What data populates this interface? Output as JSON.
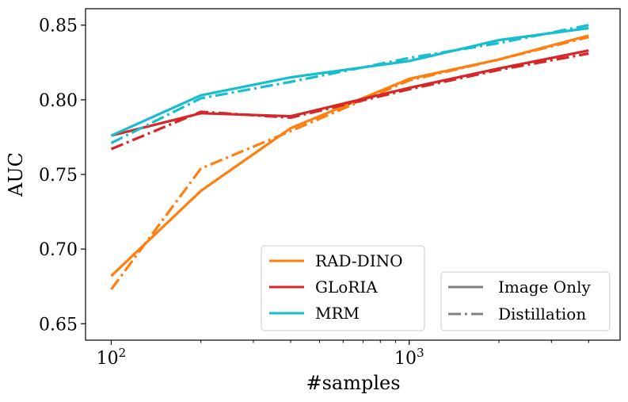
{
  "chart_data": {
    "type": "line",
    "xscale": "log",
    "xlabel": "#samples",
    "ylabel": "AUC",
    "xlim": [
      82,
      5100
    ],
    "ylim": [
      0.639,
      0.861
    ],
    "yticks": [
      0.65,
      0.7,
      0.75,
      0.8,
      0.85
    ],
    "ytick_labels": [
      "0.65",
      "0.70",
      "0.75",
      "0.80",
      "0.85"
    ],
    "xticks_major": [
      100,
      1000
    ],
    "xtick_labels": [
      {
        "base": "10",
        "exp": "2"
      },
      {
        "base": "10",
        "exp": "3"
      }
    ],
    "xticks_minor": [
      200,
      300,
      400,
      500,
      600,
      700,
      800,
      900,
      2000,
      3000,
      4000
    ],
    "x": [
      100,
      200,
      400,
      1000,
      2000,
      4000
    ],
    "series": [
      {
        "name": "RAD-DINO",
        "method": "Image Only",
        "color": "#ff7f0e",
        "style": "solid",
        "values": [
          0.682,
          0.739,
          0.781,
          0.814,
          0.827,
          0.843
        ]
      },
      {
        "name": "RAD-DINO",
        "method": "Distillation",
        "color": "#ff7f0e",
        "style": "dashdot",
        "values": [
          0.673,
          0.754,
          0.779,
          0.813,
          0.827,
          0.842
        ]
      },
      {
        "name": "GLoRIA",
        "method": "Image Only",
        "color": "#d62728",
        "style": "solid",
        "values": [
          0.776,
          0.791,
          0.789,
          0.808,
          0.821,
          0.833
        ]
      },
      {
        "name": "GLoRIA",
        "method": "Distillation",
        "color": "#d62728",
        "style": "dashdot",
        "values": [
          0.767,
          0.792,
          0.788,
          0.807,
          0.82,
          0.831
        ]
      },
      {
        "name": "MRM",
        "method": "Image Only",
        "color": "#17becf",
        "style": "solid",
        "values": [
          0.776,
          0.803,
          0.815,
          0.826,
          0.84,
          0.848
        ]
      },
      {
        "name": "MRM",
        "method": "Distillation",
        "color": "#17becf",
        "style": "dashdot",
        "values": [
          0.771,
          0.801,
          0.812,
          0.828,
          0.838,
          0.85
        ]
      }
    ],
    "legend_models": {
      "placement": "lower-center",
      "entries": [
        {
          "label": "RAD-DINO",
          "color": "#ff7f0e"
        },
        {
          "label": "GLoRIA",
          "color": "#d62728"
        },
        {
          "label": "MRM",
          "color": "#17becf"
        }
      ]
    },
    "legend_methods": {
      "placement": "lower-right",
      "entries": [
        {
          "label": "Image Only",
          "style": "solid",
          "color": "#808080"
        },
        {
          "label": "Distillation",
          "style": "dashdot",
          "color": "#808080"
        }
      ]
    }
  }
}
